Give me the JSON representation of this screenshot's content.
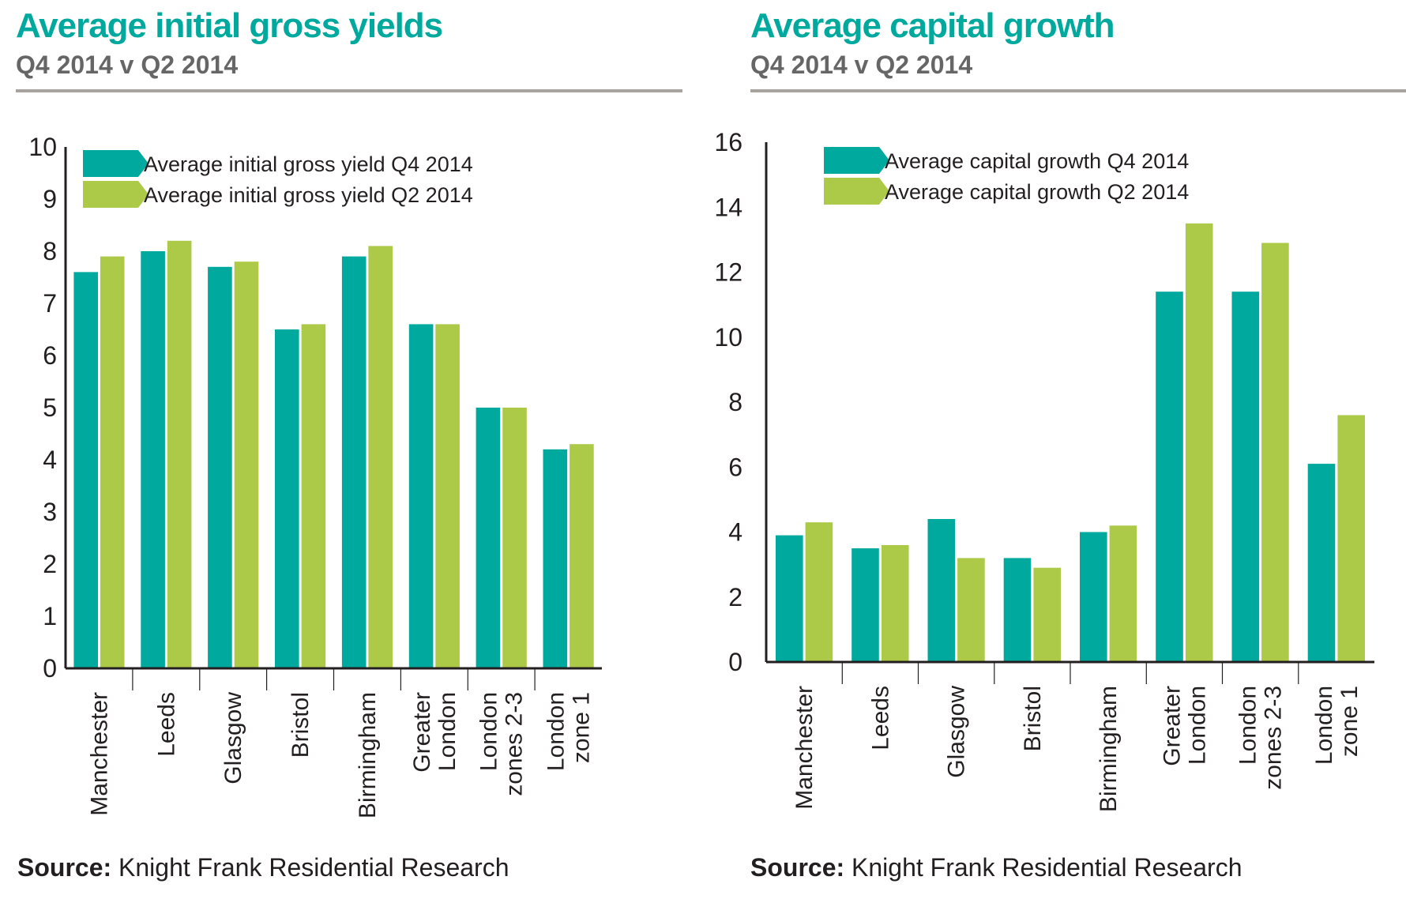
{
  "chart_data": [
    {
      "id": "yields",
      "type": "bar",
      "title": "Average initial gross yields",
      "subtitle": "Q4 2014 v Q2 2014",
      "xlabel": "",
      "ylabel": "",
      "ylim": [
        0,
        10
      ],
      "yticks": [
        0,
        1,
        2,
        3,
        4,
        5,
        6,
        7,
        8,
        9,
        10
      ],
      "grid": false,
      "legend_position": "top-left",
      "categories": [
        "Manchester",
        "Leeds",
        "Glasgow",
        "Bristol",
        "Birmingham",
        "Greater London",
        "London zones 2-3",
        "London zone 1"
      ],
      "category_lines": [
        [
          "Manchester"
        ],
        [
          "Leeds"
        ],
        [
          "Glasgow"
        ],
        [
          "Bristol"
        ],
        [
          "Birmingham"
        ],
        [
          "Greater",
          "London"
        ],
        [
          "London",
          "zones 2-3"
        ],
        [
          "London",
          "zone 1"
        ]
      ],
      "series": [
        {
          "name": "Average initial gross yield Q4 2014",
          "color": "#00a99d",
          "values": [
            7.6,
            8.0,
            7.7,
            6.5,
            7.9,
            6.6,
            5.0,
            4.2
          ]
        },
        {
          "name": "Average initial gross yield Q2 2014",
          "color": "#acc947",
          "values": [
            7.9,
            8.2,
            7.8,
            6.6,
            8.1,
            6.6,
            5.0,
            4.3
          ]
        }
      ],
      "source_label": "Source:",
      "source_text": " Knight Frank Residential Research"
    },
    {
      "id": "growth",
      "type": "bar",
      "title": "Average capital growth",
      "subtitle": "Q4 2014 v Q2 2014",
      "xlabel": "",
      "ylabel": "",
      "ylim": [
        0,
        16
      ],
      "yticks": [
        0,
        2,
        4,
        6,
        8,
        10,
        12,
        14,
        16
      ],
      "grid": false,
      "legend_position": "top-left",
      "categories": [
        "Manchester",
        "Leeds",
        "Glasgow",
        "Bristol",
        "Birmingham",
        "Greater London",
        "London zones 2-3",
        "London zone 1"
      ],
      "category_lines": [
        [
          "Manchester"
        ],
        [
          "Leeds"
        ],
        [
          "Glasgow"
        ],
        [
          "Bristol"
        ],
        [
          "Birmingham"
        ],
        [
          "Greater",
          "London"
        ],
        [
          "London",
          "zones 2-3"
        ],
        [
          "London",
          "zone 1"
        ]
      ],
      "series": [
        {
          "name": "Average capital growth Q4 2014",
          "color": "#00a99d",
          "values": [
            3.9,
            3.5,
            4.4,
            3.2,
            4.0,
            11.4,
            11.4,
            6.1
          ]
        },
        {
          "name": "Average capital growth Q2 2014",
          "color": "#acc947",
          "values": [
            4.3,
            3.6,
            3.2,
            2.9,
            4.2,
            13.5,
            12.9,
            7.6
          ]
        }
      ],
      "source_label": "Source:",
      "source_text": " Knight Frank Residential Research"
    }
  ]
}
